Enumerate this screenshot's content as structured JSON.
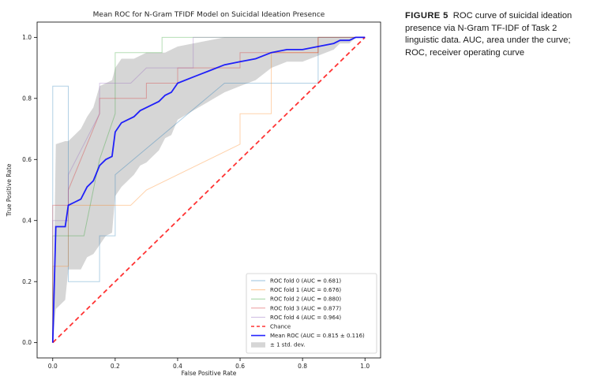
{
  "caption": {
    "label": "FIGURE 5",
    "text": "ROC curve of suicidal ideation presence via N-Gram TF-IDF of Task 2 linguistic data. AUC, area under the curve; ROC, receiver operating curve"
  },
  "chart_data": {
    "type": "line",
    "title": "Mean ROC for N-Gram TFIDF Model on Suicidal Ideation Presence",
    "xlabel": "False Positive Rate",
    "ylabel": "True Positive Rate",
    "xlim": [
      -0.05,
      1.05
    ],
    "ylim": [
      -0.05,
      1.05
    ],
    "xticks": [
      "0.0",
      "0.2",
      "0.4",
      "0.6",
      "0.8",
      "1.0"
    ],
    "yticks": [
      "0.0",
      "0.2",
      "0.4",
      "0.6",
      "0.8",
      "1.0"
    ],
    "grid": false,
    "legend_position": "lower-right",
    "series": [
      {
        "name": "ROC fold 0 (AUC = 0.681)",
        "color": "#1f77b4",
        "x": [
          0,
          0,
          0.05,
          0.05,
          0.15,
          0.15,
          0.2,
          0.2,
          0.55,
          0.85,
          0.85,
          1
        ],
        "y": [
          0,
          0.84,
          0.84,
          0.2,
          0.2,
          0.35,
          0.35,
          0.55,
          0.85,
          0.85,
          1,
          1
        ]
      },
      {
        "name": "ROC fold 1 (AUC = 0.676)",
        "color": "#ff7f0e",
        "x": [
          0,
          0,
          0.05,
          0.05,
          0.25,
          0.3,
          0.6,
          0.6,
          0.7,
          0.7,
          0.85,
          0.85,
          1
        ],
        "y": [
          0,
          0.25,
          0.25,
          0.45,
          0.45,
          0.5,
          0.65,
          0.75,
          0.75,
          0.95,
          0.95,
          1,
          1
        ]
      },
      {
        "name": "ROC fold 2 (AUC = 0.880)",
        "color": "#2ca02c",
        "x": [
          0,
          0,
          0.1,
          0.15,
          0.2,
          0.2,
          0.35,
          0.35,
          0.85,
          0.85,
          1
        ],
        "y": [
          0,
          0.35,
          0.35,
          0.6,
          0.75,
          0.95,
          0.95,
          1,
          1,
          1,
          1
        ]
      },
      {
        "name": "ROC fold 3 (AUC = 0.877)",
        "color": "#d62728",
        "x": [
          0,
          0,
          0.05,
          0.05,
          0.15,
          0.15,
          0.3,
          0.3,
          0.4,
          0.4,
          0.6,
          0.6,
          0.85,
          0.85,
          1
        ],
        "y": [
          0,
          0.45,
          0.45,
          0.5,
          0.75,
          0.8,
          0.8,
          0.85,
          0.85,
          0.9,
          0.9,
          0.95,
          0.95,
          1,
          1
        ]
      },
      {
        "name": "ROC fold 4 (AUC = 0.964)",
        "color": "#9467bd",
        "x": [
          0,
          0,
          0.05,
          0.05,
          0.15,
          0.15,
          0.25,
          0.3,
          0.45,
          0.45,
          1
        ],
        "y": [
          0,
          0.4,
          0.4,
          0.55,
          0.75,
          0.85,
          0.85,
          0.9,
          0.9,
          1,
          1
        ]
      },
      {
        "name": "Chance",
        "color": "#ff0000",
        "dashed": true,
        "x": [
          0,
          1
        ],
        "y": [
          0,
          1
        ]
      },
      {
        "name": "Mean ROC (AUC = 0.815 ± 0.116)",
        "color": "#0000ff",
        "x": [
          0,
          0.01,
          0.04,
          0.05,
          0.07,
          0.09,
          0.11,
          0.13,
          0.15,
          0.17,
          0.19,
          0.2,
          0.22,
          0.24,
          0.26,
          0.28,
          0.3,
          0.32,
          0.34,
          0.36,
          0.38,
          0.4,
          0.45,
          0.5,
          0.55,
          0.6,
          0.65,
          0.7,
          0.75,
          0.8,
          0.85,
          0.9,
          0.92,
          0.95,
          0.97,
          1.0
        ],
        "y": [
          0,
          0.38,
          0.38,
          0.45,
          0.46,
          0.47,
          0.51,
          0.53,
          0.58,
          0.6,
          0.61,
          0.69,
          0.72,
          0.73,
          0.74,
          0.76,
          0.77,
          0.78,
          0.79,
          0.81,
          0.82,
          0.85,
          0.87,
          0.89,
          0.91,
          0.92,
          0.93,
          0.95,
          0.96,
          0.96,
          0.97,
          0.98,
          0.99,
          0.99,
          1.0,
          1.0
        ]
      }
    ],
    "std_band": {
      "name": "± 1 std. dev.",
      "color": "#bbbbbb",
      "x": [
        0,
        0.01,
        0.04,
        0.05,
        0.07,
        0.09,
        0.11,
        0.13,
        0.15,
        0.17,
        0.19,
        0.2,
        0.22,
        0.24,
        0.26,
        0.28,
        0.3,
        0.32,
        0.34,
        0.36,
        0.38,
        0.4,
        0.45,
        0.5,
        0.55,
        0.6,
        0.65,
        0.7,
        0.75,
        0.8,
        0.85,
        0.9,
        0.92,
        0.95,
        0.97,
        1.0
      ],
      "upper": [
        0,
        0.65,
        0.66,
        0.66,
        0.68,
        0.7,
        0.74,
        0.77,
        0.84,
        0.85,
        0.86,
        0.9,
        0.93,
        0.93,
        0.93,
        0.94,
        0.95,
        0.95,
        0.95,
        0.95,
        0.96,
        0.97,
        0.98,
        0.99,
        1,
        1,
        1,
        1,
        1,
        1,
        1,
        1,
        1,
        1,
        1,
        1
      ],
      "lower": [
        0,
        0.11,
        0.14,
        0.24,
        0.24,
        0.24,
        0.28,
        0.29,
        0.32,
        0.35,
        0.36,
        0.48,
        0.51,
        0.53,
        0.55,
        0.58,
        0.59,
        0.61,
        0.63,
        0.67,
        0.68,
        0.73,
        0.76,
        0.79,
        0.82,
        0.84,
        0.86,
        0.9,
        0.92,
        0.92,
        0.94,
        0.96,
        0.98,
        0.98,
        1,
        1
      ]
    }
  }
}
